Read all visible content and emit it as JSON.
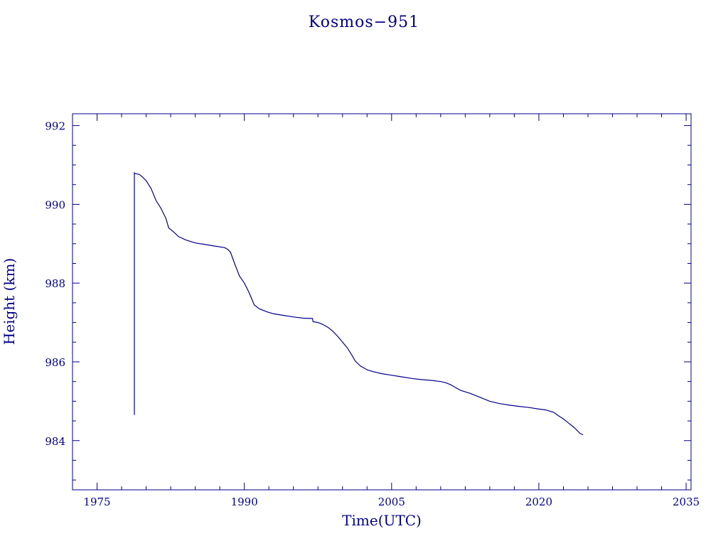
{
  "chart_data": {
    "type": "line",
    "title": "Kosmos−951",
    "xlabel": "Time(UTC)",
    "ylabel": "Height (km)",
    "xlim": [
      1972.5,
      2035.5
    ],
    "ylim": [
      982.75,
      992.3
    ],
    "x_ticks": [
      1975,
      1990,
      2005,
      2020,
      2035
    ],
    "y_ticks": [
      984,
      986,
      988,
      990,
      992
    ],
    "x_tick_labels": [
      "1975",
      "1990",
      "2005",
      "2020",
      "2035"
    ],
    "y_tick_labels": [
      "984",
      "986",
      "988",
      "990",
      "992"
    ],
    "grid": false,
    "colors": {
      "line": "#00008b",
      "axes": "#00008b",
      "text": "#00008b"
    },
    "series": [
      {
        "x": [
          1978.8,
          1978.8,
          1978.9,
          1979.3,
          1979.6,
          1980.0,
          1980.5,
          1981.0,
          1981.5,
          1982.0,
          1982.3,
          1982.8,
          1983.3,
          1984.0,
          1985.0,
          1986.0,
          1987.0,
          1988.0,
          1988.3,
          1988.6,
          1989.0,
          1989.5,
          1990.0,
          1990.5,
          1991.0,
          1991.5,
          1992.3,
          1993.0,
          1994.0,
          1995.0,
          1996.0,
          1996.95,
          1997.0,
          1997.5,
          1998.0,
          1998.5,
          1999.0,
          1999.5,
          2000.0,
          2000.5,
          2001.0,
          2001.3,
          2001.8,
          2002.5,
          2003.0,
          2004.0,
          2005.0,
          2006.0,
          2007.0,
          2008.0,
          2009.0,
          2010.0,
          2010.5,
          2011.0,
          2011.5,
          2012.0,
          2013.0,
          2014.0,
          2015.0,
          2016.0,
          2017.0,
          2018.0,
          2019.0,
          2020.0,
          2020.7,
          2021.5,
          2022.0,
          2022.5,
          2023.0,
          2023.6,
          2024.2,
          2024.5
        ],
        "y": [
          984.65,
          990.8,
          990.78,
          990.76,
          990.7,
          990.6,
          990.4,
          990.1,
          989.9,
          989.65,
          989.4,
          989.3,
          989.18,
          989.1,
          989.02,
          988.98,
          988.94,
          988.9,
          988.86,
          988.78,
          988.5,
          988.18,
          988.0,
          987.75,
          987.45,
          987.35,
          987.27,
          987.22,
          987.18,
          987.14,
          987.11,
          987.1,
          987.02,
          987.0,
          986.95,
          986.88,
          986.78,
          986.65,
          986.5,
          986.35,
          986.15,
          986.02,
          985.9,
          985.8,
          985.76,
          985.7,
          985.66,
          985.62,
          985.58,
          985.55,
          985.53,
          985.5,
          985.47,
          985.42,
          985.35,
          985.28,
          985.2,
          985.1,
          985.0,
          984.94,
          984.9,
          984.87,
          984.84,
          984.8,
          984.78,
          984.72,
          984.63,
          984.55,
          984.45,
          984.33,
          984.18,
          984.15
        ]
      }
    ]
  }
}
